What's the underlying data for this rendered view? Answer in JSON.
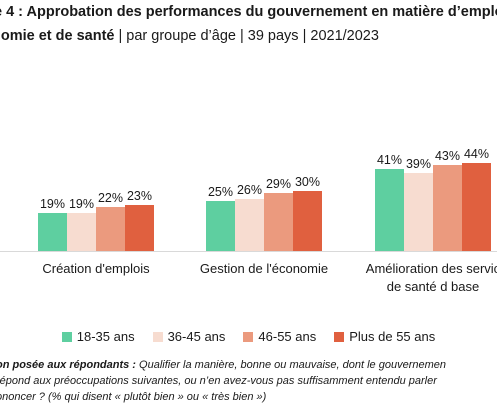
{
  "header": {
    "title_line1": "e 4 : Approbation des performances du gouvernement en matière d’emplo",
    "title_line2_bold": "nomie et de santé",
    "title_line2_rest": " | par groupe d’âge | 39 pays | 2021/2023"
  },
  "chart_data": {
    "type": "bar",
    "categories": [
      "Création d’emplois",
      "Gestion de l’économie",
      "Amélioration des servic de santé d base"
    ],
    "category_lines": [
      [
        "Création d'emplois"
      ],
      [
        "Gestion de l'économie"
      ],
      [
        "Amélioration des servic",
        "de santé d base"
      ]
    ],
    "series": [
      {
        "name": "18-35 ans",
        "color": "#5ecfa0",
        "values": [
          19,
          25,
          41
        ],
        "labels": [
          "19%",
          "25%",
          "41%"
        ]
      },
      {
        "name": "36-45 ans",
        "color": "#f7dcd0",
        "values": [
          19,
          26,
          39
        ],
        "labels": [
          "19%",
          "26%",
          "39%"
        ]
      },
      {
        "name": "46-55 ans",
        "color": "#eb9a7e",
        "values": [
          22,
          29,
          43
        ],
        "labels": [
          "22%",
          "29%",
          "43%"
        ]
      },
      {
        "name": "Plus de 55 ans",
        "color": "#e0603f",
        "values": [
          23,
          30,
          44
        ],
        "labels": [
          "23%",
          "30%",
          "44%"
        ]
      }
    ],
    "ylim": [
      0,
      50
    ],
    "grid": false,
    "legend_position": "bottom"
  },
  "note": {
    "line1_bold": "on posée aux répondants :",
    "line1_rest": " Qualifier la manière, bonne ou mauvaise, dont le gouvernemen",
    "line2": "répond aux préoccupations suivantes, ou n’en avez-vous pas suffisamment entendu parler",
    "line3": "ononcer ? (% qui disent « plutôt bien » ou « très bien »)"
  }
}
